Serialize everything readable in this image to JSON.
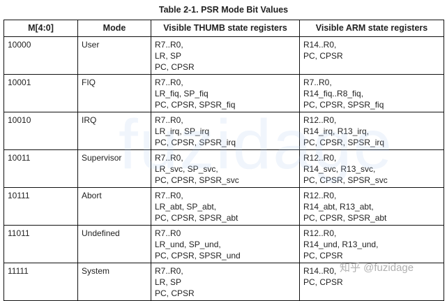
{
  "title": "Table 2-1. PSR Mode Bit Values",
  "headers": [
    "M[4:0]",
    "Mode",
    "Visible THUMB state registers",
    "Visible ARM state registers"
  ],
  "rows": [
    {
      "bits": "10000",
      "mode": "User",
      "thumb": [
        "R7..R0,",
        "LR, SP",
        "PC, CPSR"
      ],
      "arm": [
        "R14..R0,",
        "PC, CPSR"
      ]
    },
    {
      "bits": "10001",
      "mode": "FIQ",
      "thumb": [
        "R7..R0,",
        "LR_fiq, SP_fiq",
        "PC, CPSR, SPSR_fiq"
      ],
      "arm": [
        "R7..R0,",
        "R14_fiq..R8_fiq,",
        "PC, CPSR, SPSR_fiq"
      ]
    },
    {
      "bits": "10010",
      "mode": "IRQ",
      "thumb": [
        "R7..R0,",
        "LR_irq, SP_irq",
        "PC, CPSR, SPSR_irq"
      ],
      "arm": [
        "R12..R0,",
        "R14_irq, R13_irq,",
        "PC, CPSR, SPSR_irq"
      ]
    },
    {
      "bits": "10011",
      "mode": "Supervisor",
      "thumb": [
        "R7..R0,",
        "LR_svc, SP_svc,",
        "PC, CPSR, SPSR_svc"
      ],
      "arm": [
        "R12..R0,",
        "R14_svc, R13_svc,",
        "PC, CPSR, SPSR_svc"
      ]
    },
    {
      "bits": "10111",
      "mode": "Abort",
      "thumb": [
        "R7..R0,",
        "LR_abt, SP_abt,",
        "PC, CPSR, SPSR_abt"
      ],
      "arm": [
        "R12..R0,",
        "R14_abt, R13_abt,",
        "PC, CPSR, SPSR_abt"
      ]
    },
    {
      "bits": "11011",
      "mode": "Undefined",
      "thumb": [
        "R7..R0",
        "LR_und, SP_und,",
        "PC, CPSR, SPSR_und"
      ],
      "arm": [
        "R12..R0,",
        "R14_und, R13_und,",
        "PC, CPSR"
      ]
    },
    {
      "bits": "11111",
      "mode": "System",
      "thumb": [
        "R7..R0,",
        "LR, SP",
        "PC, CPSR"
      ],
      "arm": [
        "R14..R0,",
        "PC, CPSR"
      ]
    }
  ],
  "watermark": {
    "center": "fuzidage",
    "corner": "知乎 @fuzidage"
  }
}
